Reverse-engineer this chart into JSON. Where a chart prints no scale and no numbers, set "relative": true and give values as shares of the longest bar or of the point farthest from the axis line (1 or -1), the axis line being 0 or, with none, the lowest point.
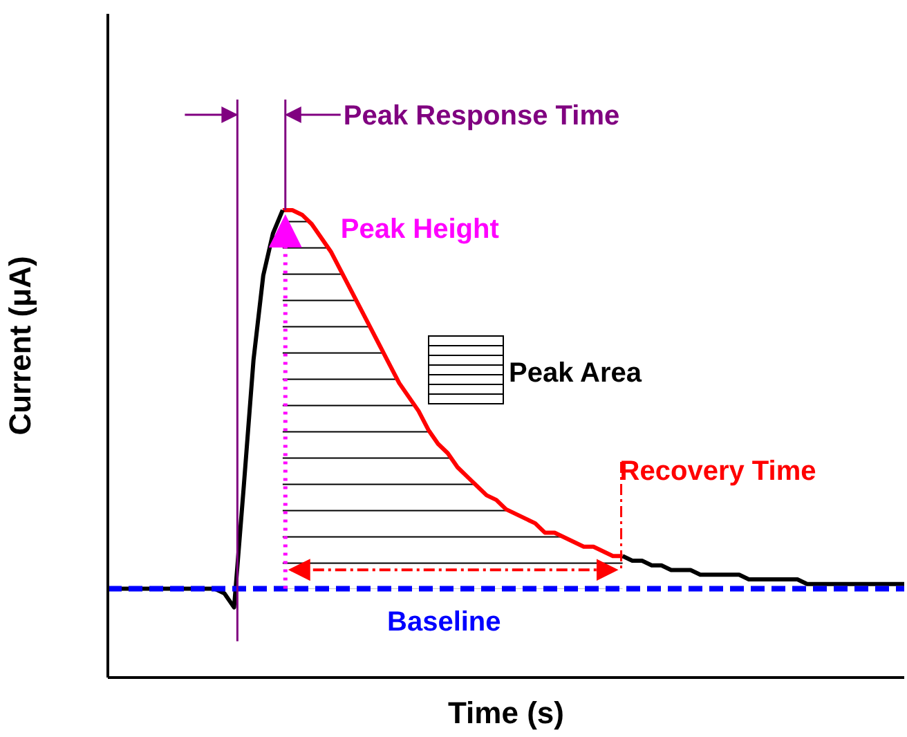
{
  "chart_data": {
    "type": "line",
    "relative": true,
    "xlabel": "Time (s)",
    "ylabel": "Current (μA)",
    "categories": [
      null,
      null,
      null,
      null,
      null,
      null,
      null,
      null,
      null,
      null,
      null,
      null,
      null,
      null,
      null,
      null,
      null,
      null,
      null,
      null,
      null,
      null,
      null,
      null,
      null,
      null,
      null,
      null,
      null,
      null,
      null,
      null,
      null,
      null,
      null,
      null,
      null,
      null,
      null,
      null,
      null,
      null,
      null,
      null,
      null,
      null,
      null,
      null,
      null,
      null,
      null,
      null,
      null,
      null,
      null,
      null,
      null,
      null,
      null,
      null,
      null,
      null,
      null,
      null,
      null,
      null,
      null,
      null,
      null,
      null,
      null,
      null,
      null,
      null,
      null,
      null,
      null,
      null,
      null,
      null,
      null,
      null,
      null
    ],
    "series": [
      {
        "color": "#000000",
        "values": [
          0.19,
          0.19,
          0.19,
          0.19,
          0.19,
          0.19,
          0.19,
          0.19,
          0.19,
          0.19,
          0.19,
          0.19,
          0.18,
          0.15,
          0.41,
          0.68,
          0.86,
          0.95,
          1.0,
          null,
          null,
          null,
          null,
          null,
          null,
          null,
          null,
          null,
          null,
          null,
          null,
          null,
          null,
          null,
          null,
          null,
          null,
          null,
          null,
          null,
          null,
          null,
          null,
          null,
          null,
          null,
          null,
          null,
          null,
          null,
          null,
          null,
          null,
          0.26,
          0.25,
          0.25,
          0.24,
          0.24,
          0.23,
          0.23,
          0.23,
          0.22,
          0.22,
          0.22,
          0.22,
          0.22,
          0.21,
          0.21,
          0.21,
          0.21,
          0.21,
          0.21,
          0.2,
          0.2,
          0.2,
          0.2,
          0.2,
          0.2,
          0.2,
          0.2,
          0.2,
          0.2,
          0.2
        ]
      },
      {
        "type": "area",
        "color": "#ff0000",
        "values": [
          null,
          null,
          null,
          null,
          null,
          null,
          null,
          null,
          null,
          null,
          null,
          null,
          null,
          null,
          null,
          null,
          null,
          null,
          1.0,
          1.0,
          0.99,
          0.97,
          0.94,
          0.91,
          0.87,
          0.83,
          0.79,
          0.75,
          0.71,
          0.67,
          0.63,
          0.6,
          0.57,
          0.53,
          0.5,
          0.48,
          0.45,
          0.43,
          0.41,
          0.39,
          0.38,
          0.36,
          0.35,
          0.34,
          0.33,
          0.31,
          0.31,
          0.3,
          0.29,
          0.28,
          0.28,
          0.27,
          0.26,
          0.26,
          null,
          null,
          null,
          null,
          null,
          null,
          null,
          null,
          null,
          null,
          null,
          null,
          null,
          null,
          null,
          null,
          null,
          null,
          null,
          null,
          null,
          null,
          null,
          null,
          null,
          null,
          null,
          null,
          null
        ]
      }
    ],
    "ref_lines": [
      {
        "axis": "y",
        "value": 0.19,
        "label": "Baseline",
        "color": "#0000ff",
        "line_style": "dashed"
      }
    ],
    "annotations": [
      "Peak Response Time",
      "Peak Height",
      "Peak Area",
      "Recovery Time"
    ]
  }
}
